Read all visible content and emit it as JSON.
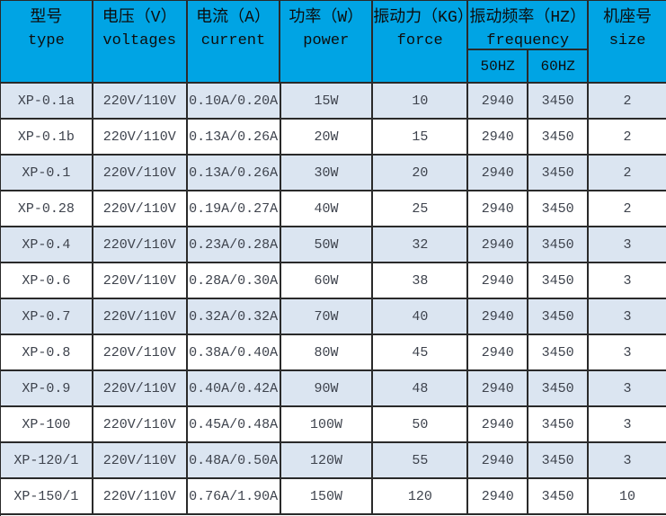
{
  "colors": {
    "header_bg": "#00a4e4",
    "row_bg": "#ffffff",
    "row_alt_bg": "#dbe5f1",
    "grid": "#2a2a2a",
    "data_text": "#3e434d",
    "header_text": "#0d0d0d"
  },
  "chart_data": {
    "type": "table",
    "columns": [
      {
        "zh": "型号",
        "en": "type"
      },
      {
        "zh": "电压（V）",
        "en": "voltages"
      },
      {
        "zh": "电流（A）",
        "en": "current"
      },
      {
        "zh": "功率（W）",
        "en": "power"
      },
      {
        "zh": "振动力（KG）",
        "en": "force"
      },
      {
        "zh": "振动频率（HZ）",
        "en": "frequency",
        "sub": [
          "50HZ",
          "60HZ"
        ]
      },
      {
        "zh": "机座号",
        "en": "size"
      }
    ],
    "rows": [
      [
        "XP-0.1a",
        "220V/110V",
        "0.10A/0.20A",
        "15W",
        "10",
        "2940",
        "3450",
        "2"
      ],
      [
        "XP-0.1b",
        "220V/110V",
        "0.13A/0.26A",
        "20W",
        "15",
        "2940",
        "3450",
        "2"
      ],
      [
        "XP-0.1",
        "220V/110V",
        "0.13A/0.26A",
        "30W",
        "20",
        "2940",
        "3450",
        "2"
      ],
      [
        "XP-0.28",
        "220V/110V",
        "0.19A/0.27A",
        "40W",
        "25",
        "2940",
        "3450",
        "2"
      ],
      [
        "XP-0.4",
        "220V/110V",
        "0.23A/0.28A",
        "50W",
        "32",
        "2940",
        "3450",
        "3"
      ],
      [
        "XP-0.6",
        "220V/110V",
        "0.28A/0.30A",
        "60W",
        "38",
        "2940",
        "3450",
        "3"
      ],
      [
        "XP-0.7",
        "220V/110V",
        "0.32A/0.32A",
        "70W",
        "40",
        "2940",
        "3450",
        "3"
      ],
      [
        "XP-0.8",
        "220V/110V",
        "0.38A/0.40A",
        "80W",
        "45",
        "2940",
        "3450",
        "3"
      ],
      [
        "XP-0.9",
        "220V/110V",
        "0.40A/0.42A",
        "90W",
        "48",
        "2940",
        "3450",
        "3"
      ],
      [
        "XP-100",
        "220V/110V",
        "0.45A/0.48A",
        "100W",
        "50",
        "2940",
        "3450",
        "3"
      ],
      [
        "XP-120/1",
        "220V/110V",
        "0.48A/0.50A",
        "120W",
        "55",
        "2940",
        "3450",
        "3"
      ],
      [
        "XP-150/1",
        "220V/110V",
        "0.76A/1.90A",
        "150W",
        "120",
        "2940",
        "3450",
        "10"
      ]
    ]
  }
}
